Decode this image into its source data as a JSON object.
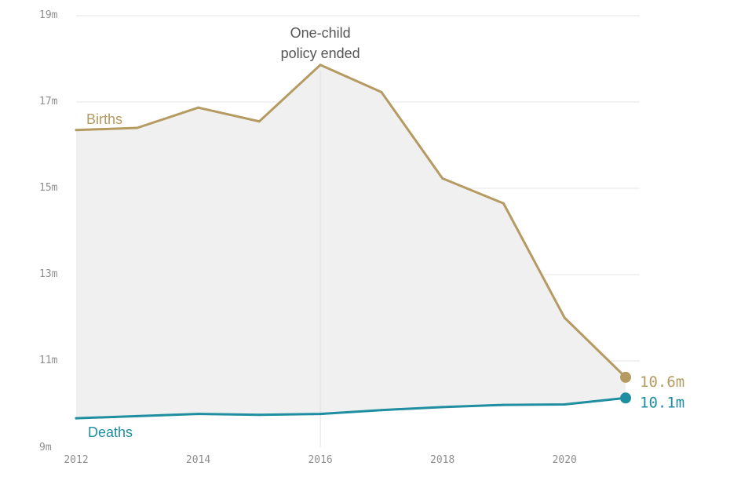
{
  "chart_data": {
    "type": "line",
    "x": [
      2012,
      2013,
      2014,
      2015,
      2016,
      2017,
      2018,
      2019,
      2020,
      2021
    ],
    "series": [
      {
        "name": "Births",
        "values": [
          16.35,
          16.4,
          16.87,
          16.55,
          17.86,
          17.23,
          15.23,
          14.65,
          12.0,
          10.62
        ],
        "color": "#b59b62",
        "end_label": "10.6m"
      },
      {
        "name": "Deaths",
        "values": [
          9.67,
          9.72,
          9.77,
          9.75,
          9.77,
          9.86,
          9.93,
          9.98,
          9.99,
          10.14
        ],
        "color": "#1f8ea0",
        "end_label": "10.1m"
      }
    ],
    "xlim": [
      2012,
      2021
    ],
    "ylim": [
      9,
      19
    ],
    "x_ticks": [
      {
        "value": 2012,
        "label": "2012"
      },
      {
        "value": 2014,
        "label": "2014"
      },
      {
        "value": 2016,
        "label": "2016"
      },
      {
        "value": 2018,
        "label": "2018"
      },
      {
        "value": 2020,
        "label": "2020"
      }
    ],
    "y_ticks": [
      {
        "value": 9,
        "label": "9m"
      },
      {
        "value": 11,
        "label": "11m"
      },
      {
        "value": 13,
        "label": "13m"
      },
      {
        "value": 15,
        "label": "15m"
      },
      {
        "value": 17,
        "label": "17m"
      },
      {
        "value": 19,
        "label": "19m"
      }
    ],
    "annotation": {
      "x": 2016,
      "lines": [
        "One-child",
        "policy ended"
      ]
    },
    "fill_between": true,
    "grid": true,
    "fill_color": "#f0f0f0",
    "grid_color": "#e6e6e6",
    "text_color": "#8f8f8f"
  }
}
